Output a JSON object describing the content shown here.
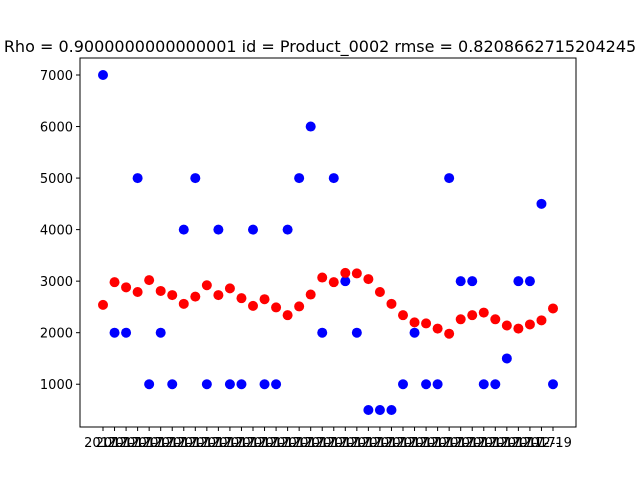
{
  "chart_data": {
    "type": "scatter",
    "title": "Rho = 0.9000000000000001 id = Product_0002 rmse = 0.8208662715204245",
    "xlabel": "",
    "ylabel": "",
    "ylim": [
      170,
      7330
    ],
    "yticks": [
      1000,
      2000,
      3000,
      4000,
      5000,
      6000,
      7000
    ],
    "grid": false,
    "x_tick_labels_note": "40 overlapping date labels; last visible ends with 12-19",
    "x": [
      "t01",
      "t02",
      "t03",
      "t04",
      "t05",
      "t06",
      "t07",
      "t08",
      "t09",
      "t10",
      "t11",
      "t12",
      "t13",
      "t14",
      "t15",
      "t16",
      "t17",
      "t18",
      "t19",
      "t20",
      "t21",
      "t22",
      "t23",
      "t24",
      "t25",
      "t26",
      "t27",
      "t28",
      "t29",
      "t30",
      "t31",
      "t32",
      "t33",
      "t34",
      "t35",
      "t36",
      "t37",
      "t38",
      "t39",
      "t40"
    ],
    "x_tick_text": [
      "2017-",
      "2017-",
      "2017-",
      "2017-",
      "2017-",
      "2017-",
      "2017-",
      "2017-",
      "2017-",
      "2017-",
      "2017-",
      "2017-",
      "2017-",
      "2017-",
      "2017-",
      "2017-",
      "2017-",
      "2017-",
      "2017-",
      "2017-",
      "2017-",
      "2017-",
      "2017-",
      "2017-",
      "2017-",
      "2017-",
      "2017-",
      "2017-",
      "2017-",
      "2017-",
      "2017-",
      "2017-",
      "2017-",
      "2017-",
      "2017-",
      "2017-",
      "2017-",
      "2017-",
      "2017-",
      "12-19"
    ],
    "series": [
      {
        "color": "#0000ff",
        "values": [
          7000,
          2000,
          2000,
          5000,
          1000,
          2000,
          1000,
          4000,
          5000,
          1000,
          4000,
          1000,
          1000,
          4000,
          1000,
          1000,
          4000,
          5000,
          6000,
          2000,
          5000,
          3000,
          2000,
          500,
          500,
          500,
          1000,
          2000,
          1000,
          1000,
          5000,
          3000,
          3000,
          1000,
          1000,
          1500,
          3000,
          3000,
          4500,
          1000
        ]
      },
      {
        "color": "#ff0000",
        "values": [
          2540,
          2980,
          2880,
          2790,
          3020,
          2810,
          2730,
          2560,
          2700,
          2920,
          2730,
          2860,
          2670,
          2520,
          2650,
          2490,
          2340,
          2510,
          2740,
          3070,
          2980,
          3160,
          3150,
          3040,
          2790,
          2560,
          2340,
          2200,
          2180,
          2080,
          1980,
          2260,
          2340,
          2390,
          2260,
          2140,
          2080,
          2160,
          2240,
          2470
        ]
      }
    ]
  }
}
